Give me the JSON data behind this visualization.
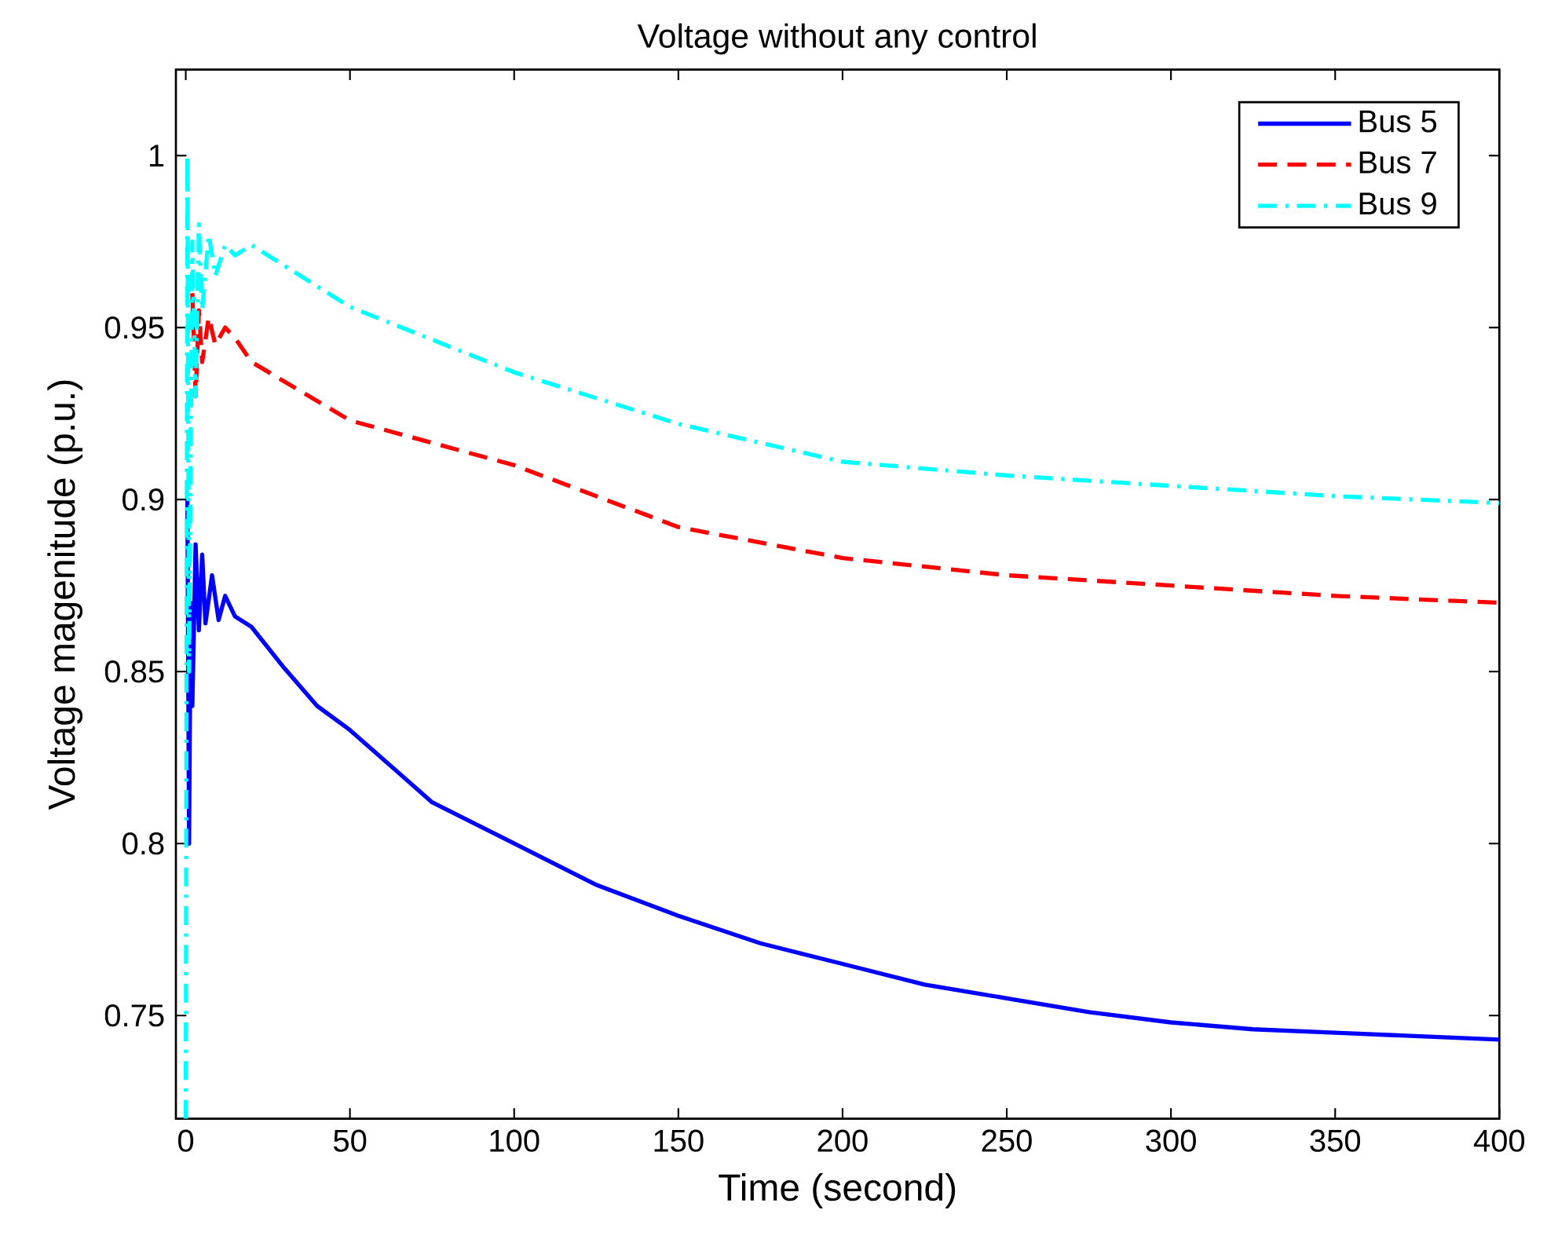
{
  "chart_data": {
    "type": "line",
    "title": "Voltage without any control",
    "xlabel": "Time (second)",
    "ylabel": "Voltage magenitude (p.u.)",
    "xlim": [
      -3,
      400
    ],
    "ylim": [
      0.72,
      1.025
    ],
    "xticks": [
      0,
      50,
      100,
      150,
      200,
      250,
      300,
      350,
      400
    ],
    "yticks": [
      0.75,
      0.8,
      0.85,
      0.9,
      0.95,
      1
    ],
    "grid": false,
    "legend": "top right",
    "marker": "none",
    "series": [
      {
        "name": "Bus 5",
        "color": "#0000ff",
        "line_style": "solid",
        "x": [
          0.5,
          1,
          1.5,
          2,
          3,
          4,
          5,
          6,
          8,
          10,
          12,
          15,
          20,
          30,
          40,
          50,
          75,
          100,
          125,
          150,
          175,
          200,
          225,
          250,
          275,
          300,
          325,
          350,
          375,
          400
        ],
        "values": [
          0.9,
          0.8,
          0.87,
          0.84,
          0.887,
          0.862,
          0.884,
          0.864,
          0.878,
          0.865,
          0.872,
          0.866,
          0.863,
          0.851,
          0.84,
          0.833,
          0.812,
          0.8,
          0.788,
          0.779,
          0.771,
          0.765,
          0.759,
          0.755,
          0.751,
          0.748,
          0.746,
          0.745,
          0.744,
          0.743
        ]
      },
      {
        "name": "Bus 7",
        "color": "#ff0000",
        "line_style": "dashed",
        "x": [
          2,
          3,
          4,
          5,
          7,
          9,
          12,
          15,
          20,
          50,
          100,
          150,
          200,
          250,
          300,
          350,
          400
        ],
        "values": [
          0.96,
          0.93,
          0.955,
          0.94,
          0.953,
          0.945,
          0.95,
          0.947,
          0.94,
          0.923,
          0.91,
          0.892,
          0.883,
          0.878,
          0.875,
          0.872,
          0.87
        ]
      },
      {
        "name": "Bus 9",
        "color": "#00ffff",
        "line_style": "dashdot",
        "x": [
          0,
          0.5,
          1,
          2,
          3,
          4,
          5,
          7,
          9,
          12,
          15,
          20,
          50,
          100,
          150,
          200,
          250,
          300,
          350,
          400
        ],
        "values": [
          0.72,
          1.0,
          0.85,
          0.975,
          0.93,
          0.98,
          0.955,
          0.977,
          0.965,
          0.974,
          0.971,
          0.974,
          0.956,
          0.937,
          0.922,
          0.911,
          0.907,
          0.904,
          0.901,
          0.899
        ]
      }
    ]
  }
}
